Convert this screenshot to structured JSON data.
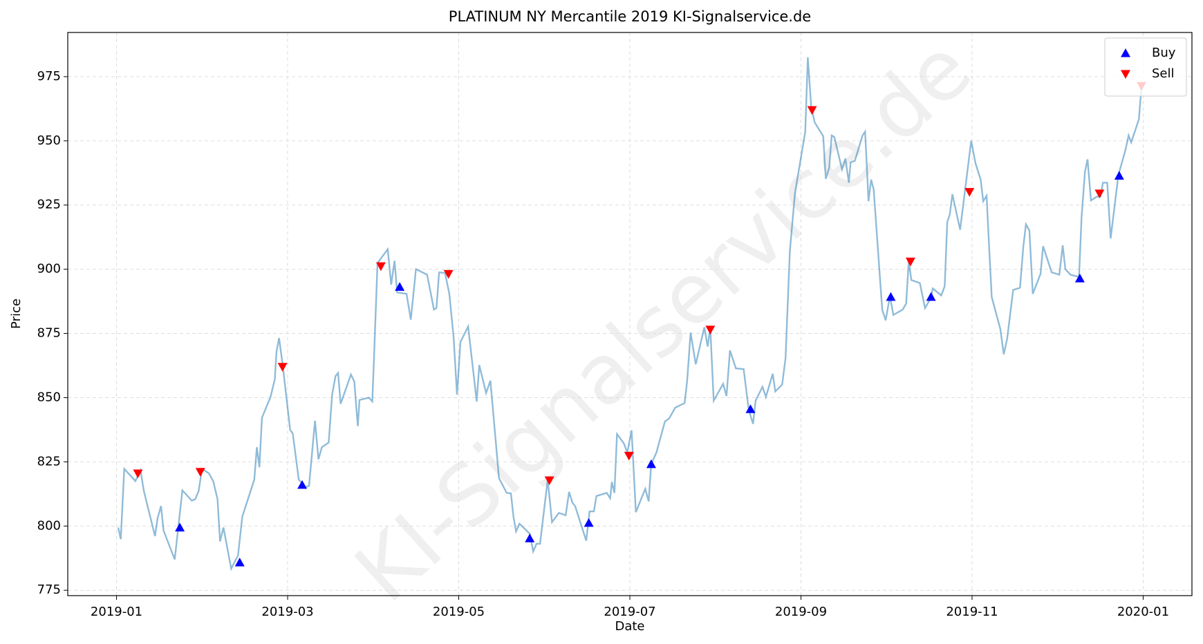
{
  "chart_data": {
    "type": "line",
    "title": "PLATINUM NY Mercantile 2019 KI-Signalservice.de",
    "watermark": "KI-Signalservice.de",
    "xlabel": "Date",
    "ylabel": "Price",
    "color": "#1f77b4",
    "alpha": 0.5,
    "grid": true,
    "legend": "upper right",
    "xlim": [
      -0.57,
      12.57
    ],
    "xticks": [
      {
        "value": 0,
        "label": "2019-01"
      },
      {
        "value": 2,
        "label": "2019-03"
      },
      {
        "value": 4,
        "label": "2019-05"
      },
      {
        "value": 6,
        "label": "2019-07"
      },
      {
        "value": 8,
        "label": "2019-09"
      },
      {
        "value": 10,
        "label": "2019-11"
      },
      {
        "value": 12,
        "label": "2020-01"
      }
    ],
    "ylim": [
      772.9,
      992.2
    ],
    "yticks": [
      775,
      800,
      825,
      850,
      875,
      900,
      925,
      950,
      975
    ],
    "x": [
      0.02,
      0.05,
      0.09,
      0.22,
      0.28,
      0.32,
      0.45,
      0.48,
      0.52,
      0.55,
      0.68,
      0.77,
      0.88,
      0.92,
      0.96,
      1.0,
      1.08,
      1.13,
      1.18,
      1.21,
      1.25,
      1.34,
      1.42,
      1.47,
      1.61,
      1.64,
      1.67,
      1.7,
      1.8,
      1.85,
      1.87,
      1.9,
      1.94,
      2.03,
      2.06,
      2.13,
      2.21,
      2.25,
      2.29,
      2.32,
      2.36,
      2.4,
      2.48,
      2.52,
      2.56,
      2.59,
      2.62,
      2.74,
      2.78,
      2.82,
      2.84,
      2.95,
      2.99,
      3.01,
      3.05,
      3.17,
      3.21,
      3.25,
      3.28,
      3.39,
      3.44,
      3.5,
      3.63,
      3.68,
      3.71,
      3.74,
      3.77,
      3.84,
      3.89,
      3.94,
      3.98,
      4.02,
      4.11,
      4.21,
      4.24,
      4.32,
      4.37,
      4.47,
      4.56,
      4.61,
      4.64,
      4.67,
      4.71,
      4.83,
      4.87,
      4.91,
      4.95,
      5.04,
      5.09,
      5.17,
      5.25,
      5.29,
      5.33,
      5.36,
      5.49,
      5.53,
      5.58,
      5.61,
      5.73,
      5.77,
      5.79,
      5.82,
      5.85,
      5.93,
      5.97,
      6.02,
      6.07,
      6.18,
      6.22,
      6.25,
      6.31,
      6.41,
      6.46,
      6.53,
      6.64,
      6.67,
      6.71,
      6.77,
      6.87,
      6.91,
      6.94,
      6.98,
      7.09,
      7.13,
      7.17,
      7.24,
      7.33,
      7.39,
      7.44,
      7.47,
      7.55,
      7.59,
      7.67,
      7.7,
      7.78,
      7.82,
      7.87,
      7.93,
      8.05,
      8.08,
      8.12,
      8.16,
      8.26,
      8.29,
      8.33,
      8.36,
      8.39,
      8.48,
      8.52,
      8.56,
      8.58,
      8.63,
      8.72,
      8.75,
      8.79,
      8.82,
      8.85,
      8.95,
      8.99,
      9.04,
      9.08,
      9.19,
      9.23,
      9.26,
      9.29,
      9.39,
      9.45,
      9.52,
      9.54,
      9.64,
      9.68,
      9.71,
      9.74,
      9.77,
      9.86,
      9.99,
      10.04,
      10.1,
      10.13,
      10.17,
      10.2,
      10.23,
      10.33,
      10.37,
      10.41,
      10.48,
      10.56,
      10.6,
      10.63,
      10.67,
      10.71,
      10.8,
      10.83,
      10.93,
      11.02,
      11.06,
      11.09,
      11.15,
      11.25,
      11.28,
      11.32,
      11.35,
      11.39,
      11.46,
      11.5,
      11.53,
      11.58,
      11.62,
      11.71,
      11.79,
      11.83,
      11.86,
      11.95,
      11.98
    ],
    "values": [
      799.4,
      794.9,
      822.3,
      817.5,
      821.7,
      813.6,
      796.1,
      803,
      807.8,
      798.2,
      787.0,
      813.9,
      809.9,
      810.5,
      813.6,
      822.3,
      820.5,
      817.5,
      810.5,
      794,
      799.4,
      783.4,
      788.6,
      803.6,
      818.1,
      830.7,
      822.9,
      842.2,
      850.3,
      857.2,
      867.8,
      873.2,
      863.3,
      837.4,
      836.1,
      818.1,
      815.1,
      815.7,
      830.1,
      841,
      826,
      830.7,
      832.5,
      851.2,
      858.4,
      859.6,
      847.6,
      859,
      856.3,
      838.9,
      849.1,
      850,
      848.5,
      865.7,
      902.4,
      907.8,
      894,
      903.3,
      891,
      890.4,
      880.4,
      900,
      897.9,
      889.5,
      884.3,
      884.9,
      898.8,
      898.5,
      890.4,
      873.5,
      851.2,
      871.7,
      877.7,
      848.5,
      862.7,
      851.8,
      856.6,
      818.7,
      812.9,
      812.7,
      803.6,
      797.9,
      800.9,
      797,
      790.1,
      793.1,
      793.1,
      818.1,
      801.5,
      805.1,
      804.2,
      813.3,
      809,
      807.8,
      794.3,
      805.7,
      805.7,
      811.7,
      812.9,
      810.8,
      817.2,
      812.9,
      835.8,
      832.2,
      828.6,
      837.3,
      805.4,
      814.5,
      809.6,
      824.1,
      828.6,
      840.7,
      841.9,
      846.1,
      847.9,
      856.6,
      875.3,
      863,
      877.4,
      869.9,
      877.4,
      848.8,
      855.4,
      850.6,
      868.4,
      861.4,
      861.1,
      845.2,
      839.8,
      848.8,
      854.2,
      850.3,
      859.3,
      852.4,
      855.1,
      865.4,
      906.9,
      929.5,
      953.6,
      982.5,
      963.3,
      957.2,
      951.8,
      935.2,
      939.5,
      952.1,
      951.5,
      938.9,
      943.1,
      933.7,
      941.6,
      942.2,
      952.1,
      953.6,
      926.5,
      934.9,
      931,
      884.3,
      880.1,
      889.5,
      882.2,
      884.3,
      886.7,
      903.3,
      895.8,
      894.6,
      884.9,
      888.9,
      892.5,
      889.8,
      893.4,
      918.4,
      921.4,
      929.2,
      915.4,
      950,
      941.3,
      934.9,
      926.5,
      928.6,
      908.4,
      889.2,
      876.8,
      866.9,
      872.9,
      891.9,
      892.8,
      909,
      917.5,
      915.1,
      890.4,
      898.2,
      909,
      898.8,
      897.9,
      909.3,
      900,
      897.9,
      897,
      920.5,
      938,
      942.8,
      926.8,
      928.3,
      928.3,
      933.7,
      933.7,
      912,
      936.7,
      946.1,
      952.1,
      949.4,
      958.4,
      971.1
    ],
    "series": [
      {
        "name": "Buy",
        "color": "#0000ff",
        "marker": "up",
        "x": [
          0.74,
          1.44,
          2.17,
          3.31,
          4.83,
          5.52,
          6.25,
          7.41,
          9.05,
          9.52,
          11.26,
          11.72
        ],
        "values": [
          799.4,
          785.8,
          816,
          893.1,
          795.2,
          801.2,
          824.1,
          845.5,
          889.2,
          889.2,
          896.4,
          936.4
        ]
      },
      {
        "name": "Sell",
        "color": "#ff0000",
        "marker": "down",
        "x": [
          0.25,
          0.98,
          1.94,
          3.09,
          3.88,
          5.06,
          5.99,
          6.94,
          8.13,
          9.28,
          9.97,
          11.49,
          11.98
        ],
        "values": [
          820.5,
          821.1,
          862.0,
          901.2,
          898.2,
          817.8,
          827.4,
          876.5,
          962.0,
          903.0,
          930.1,
          929.5,
          971.4
        ]
      }
    ]
  }
}
